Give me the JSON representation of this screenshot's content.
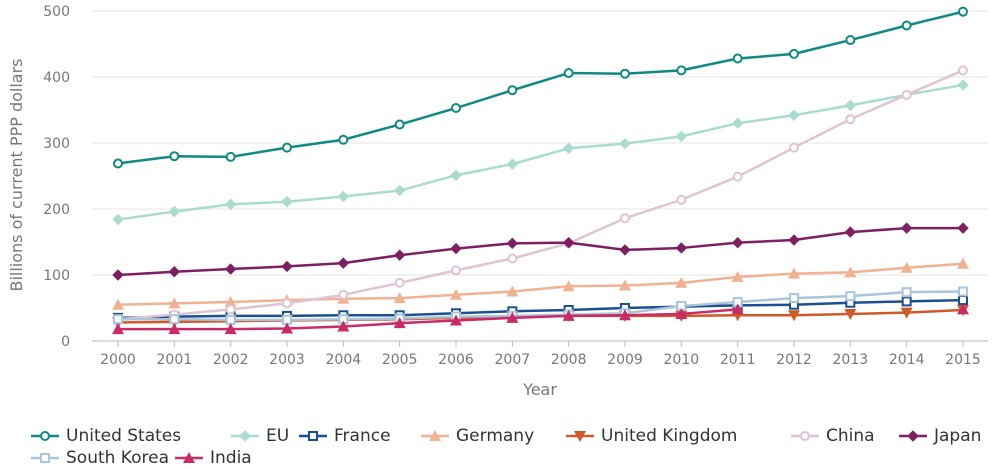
{
  "chart_data": {
    "type": "line",
    "xlabel": "Year",
    "ylabel": "Billions of current PPP dollars",
    "x": [
      2000,
      2001,
      2002,
      2003,
      2004,
      2005,
      2006,
      2007,
      2008,
      2009,
      2010,
      2011,
      2012,
      2013,
      2014,
      2015
    ],
    "ylim": [
      0,
      500
    ],
    "yticks": [
      0,
      100,
      200,
      300,
      400,
      500
    ],
    "grid": true,
    "legend_position": "bottom",
    "series": [
      {
        "name": "United States",
        "color": "#0f8a80",
        "marker": "circle",
        "values": [
          269,
          280,
          279,
          293,
          305,
          328,
          353,
          380,
          406,
          405,
          410,
          428,
          435,
          456,
          478,
          499
        ]
      },
      {
        "name": "EU",
        "color": "#a9dccf",
        "marker": "diamond",
        "values": [
          184,
          196,
          207,
          211,
          219,
          228,
          251,
          268,
          292,
          299,
          310,
          330,
          342,
          357,
          373,
          388
        ]
      },
      {
        "name": "France",
        "color": "#1b4f94",
        "marker": "square",
        "values": [
          35,
          37,
          38,
          38,
          39,
          39,
          42,
          45,
          47,
          50,
          52,
          54,
          55,
          58,
          60,
          62
        ]
      },
      {
        "name": "Germany",
        "color": "#f0b292",
        "marker": "triangle-up",
        "values": [
          55,
          57,
          59,
          62,
          64,
          65,
          70,
          75,
          83,
          84,
          88,
          97,
          102,
          104,
          111,
          117
        ]
      },
      {
        "name": "United Kingdom",
        "color": "#d05a27",
        "marker": "triangle-down",
        "values": [
          28,
          29,
          30,
          31,
          32,
          33,
          35,
          37,
          38,
          38,
          38,
          39,
          39,
          41,
          43,
          47
        ]
      },
      {
        "name": "China",
        "color": "#dfc4d4",
        "marker": "circle",
        "values": [
          33,
          40,
          48,
          57,
          70,
          88,
          107,
          125,
          148,
          186,
          214,
          249,
          293,
          336,
          373,
          410
        ]
      },
      {
        "name": "Japan",
        "color": "#7e1f62",
        "marker": "diamond",
        "values": [
          100,
          105,
          109,
          113,
          118,
          130,
          140,
          148,
          149,
          138,
          141,
          149,
          153,
          165,
          171,
          171
        ]
      },
      {
        "name": "South Korea",
        "color": "#a9c5dc",
        "marker": "square",
        "values": [
          33,
          33,
          32,
          32,
          33,
          34,
          37,
          38,
          40,
          42,
          53,
          59,
          65,
          68,
          74,
          75
        ]
      },
      {
        "name": "India",
        "color": "#c92b66",
        "marker": "triangle-up",
        "values": [
          18,
          18,
          18,
          19,
          22,
          27,
          31,
          35,
          38,
          39,
          41,
          48,
          null,
          null,
          null,
          48
        ]
      }
    ]
  }
}
